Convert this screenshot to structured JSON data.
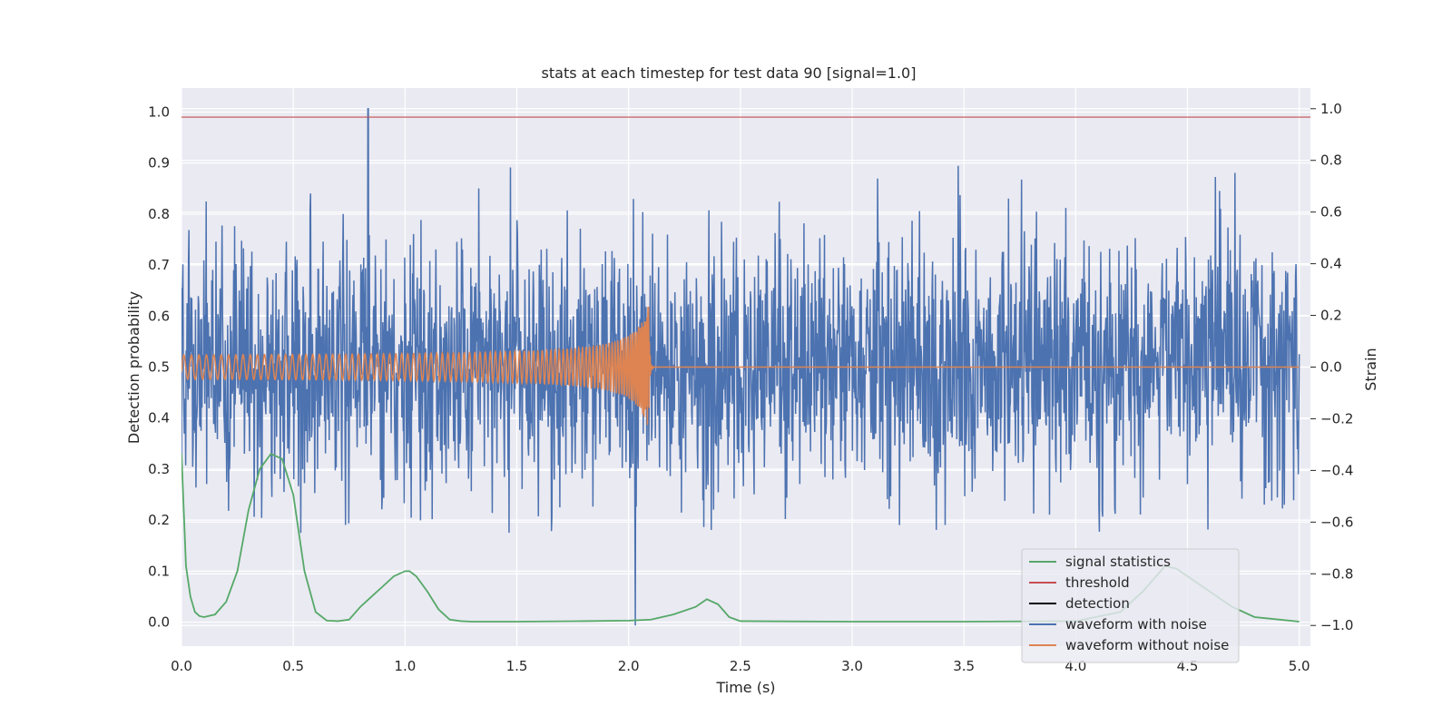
{
  "chart_data": {
    "type": "line",
    "title": "stats at each timestep for test data 90 [signal=1.0]",
    "xlabel": "Time (s)",
    "ylabel_left": "Detection probability",
    "ylabel_right": "Strain",
    "xlim": [
      0.0,
      5.05
    ],
    "ylim_left": [
      -0.047,
      1.047
    ],
    "ylim_right": [
      -1.08,
      1.08
    ],
    "x_ticks": [
      "0.0",
      "0.5",
      "1.0",
      "1.5",
      "2.0",
      "2.5",
      "3.0",
      "3.5",
      "4.0",
      "4.5",
      "5.0"
    ],
    "y_ticks_left": [
      "0.0",
      "0.1",
      "0.2",
      "0.3",
      "0.4",
      "0.5",
      "0.6",
      "0.7",
      "0.8",
      "0.9",
      "1.0"
    ],
    "y_ticks_right": [
      "−1.0",
      "−0.8",
      "−0.6",
      "−0.4",
      "−0.2",
      "0.0",
      "0.2",
      "0.4",
      "0.6",
      "0.8",
      "1.0"
    ],
    "grid": true,
    "legend_placement": "lower-right",
    "colors": {
      "background": "#eaeaf2",
      "grid": "#ffffff",
      "signal_statistics": "#55a868",
      "threshold": "#c44e52",
      "detection": "#000000",
      "waveform_with_noise": "#4c72b0",
      "waveform_without_noise": "#dd8452"
    },
    "legend": [
      {
        "key": "signal_statistics",
        "label": "signal statistics"
      },
      {
        "key": "threshold",
        "label": "threshold"
      },
      {
        "key": "detection",
        "label": "detection"
      },
      {
        "key": "waveform_with_noise",
        "label": "waveform with noise"
      },
      {
        "key": "waveform_without_noise",
        "label": "waveform without noise"
      }
    ],
    "threshold": 0.99,
    "signal_statistics": {
      "x": [
        0.0,
        0.02,
        0.04,
        0.06,
        0.08,
        0.1,
        0.15,
        0.2,
        0.25,
        0.3,
        0.35,
        0.4,
        0.45,
        0.5,
        0.55,
        0.6,
        0.65,
        0.7,
        0.75,
        0.8,
        0.85,
        0.9,
        0.95,
        1.0,
        1.02,
        1.05,
        1.1,
        1.15,
        1.2,
        1.25,
        1.3,
        1.5,
        1.8,
        2.0,
        2.1,
        2.2,
        2.3,
        2.35,
        2.4,
        2.45,
        2.5,
        3.0,
        3.5,
        4.0,
        4.2,
        4.3,
        4.4,
        4.45,
        4.5,
        4.6,
        4.7,
        4.8,
        5.0
      ],
      "y": [
        0.33,
        0.11,
        0.05,
        0.02,
        0.012,
        0.01,
        0.015,
        0.04,
        0.1,
        0.22,
        0.3,
        0.33,
        0.32,
        0.25,
        0.1,
        0.02,
        0.003,
        0.002,
        0.005,
        0.03,
        0.05,
        0.07,
        0.09,
        0.1,
        0.1,
        0.09,
        0.06,
        0.025,
        0.005,
        0.002,
        0.001,
        0.001,
        0.002,
        0.003,
        0.005,
        0.015,
        0.03,
        0.045,
        0.035,
        0.01,
        0.002,
        0.001,
        0.001,
        0.002,
        0.02,
        0.06,
        0.11,
        0.105,
        0.09,
        0.06,
        0.03,
        0.01,
        0.001
      ]
    },
    "waveform_without_noise": {
      "description_points": {
        "t_start": 0.0,
        "t_merger": 2.09,
        "t_end": 5.0,
        "amplitude_start": 0.04,
        "amplitude_peak": 0.25,
        "post_merger": 0.0
      }
    },
    "waveform_with_noise": {
      "samples": 2400,
      "typical_range": [
        -0.65,
        0.8
      ],
      "max": 1.0,
      "min": -1.0
    },
    "detection": []
  }
}
